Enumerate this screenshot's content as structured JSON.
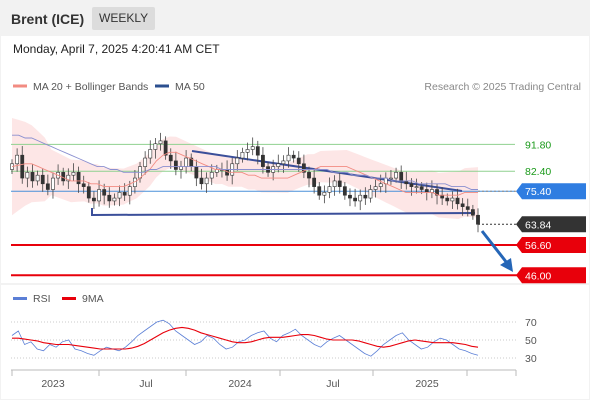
{
  "header": {
    "title": "Brent (ICE)",
    "timeframe": "WEEKLY"
  },
  "timestamp": "Monday, April 7, 2025 4:20:41 AM CET",
  "legend": {
    "bollinger": {
      "label": "MA 20 + Bollinger Bands",
      "color": "#f28b82"
    },
    "ma50": {
      "label": "MA 50",
      "color": "#2b4f8f"
    },
    "credit": "Research © 2025 Trading Central"
  },
  "levels": [
    {
      "value": 91.8,
      "label": "91.80",
      "kind": "resistance",
      "color": "#8fd18f"
    },
    {
      "value": 82.4,
      "label": "82.40",
      "kind": "resistance",
      "color": "#8fd18f"
    },
    {
      "value": 75.4,
      "label": "75.40",
      "kind": "pivot",
      "color": "#4a90d9"
    },
    {
      "value": 63.84,
      "label": "63.84",
      "kind": "last",
      "color": "#333333"
    },
    {
      "value": 56.6,
      "label": "56.60",
      "kind": "support",
      "color": "#e8000b"
    },
    {
      "value": 46.0,
      "label": "46.00",
      "kind": "support",
      "color": "#e8000b"
    }
  ],
  "chart_data": [
    {
      "type": "candlestick",
      "x_ticks": [
        "2023",
        "Jul",
        "2024",
        "Jul",
        "2025"
      ],
      "ylim": [
        44,
        108
      ],
      "series": [
        {
          "name": "MA 20 + Bollinger Bands",
          "values": [
            84,
            84.5,
            85,
            85,
            84,
            83,
            82,
            81,
            80,
            79,
            79,
            79,
            78,
            78,
            77,
            77,
            77,
            77,
            78,
            79,
            81,
            83,
            86,
            88,
            89,
            89,
            88,
            87,
            86,
            85,
            84,
            83,
            83,
            82,
            82,
            82,
            81,
            81,
            80,
            80,
            80,
            80,
            80,
            81,
            82,
            83,
            83,
            84,
            84,
            84,
            84,
            84,
            83,
            82,
            81,
            80,
            79,
            78,
            77,
            76,
            75,
            75,
            75,
            75,
            75,
            74,
            74,
            74,
            74,
            75,
            75,
            75
          ]
        },
        {
          "name": "MA 50",
          "values": [
            95,
            95,
            94,
            94,
            93,
            92,
            91,
            90,
            89,
            88,
            87,
            86,
            85,
            84,
            84,
            83,
            83,
            82,
            82,
            82,
            82,
            83,
            83,
            84,
            84,
            84,
            84,
            84,
            84,
            84,
            84,
            84,
            83,
            83,
            83,
            83,
            83,
            83,
            83,
            83,
            83,
            83,
            83,
            83,
            83,
            83,
            83,
            83,
            83,
            82,
            82,
            82,
            81,
            81,
            81,
            80,
            80,
            80,
            79,
            79,
            79,
            79,
            78,
            78,
            78,
            78,
            78,
            77,
            77,
            77,
            76,
            76
          ]
        }
      ],
      "candles": [
        85,
        88,
        80,
        82,
        79,
        81,
        78,
        76,
        80,
        82,
        79,
        81,
        82,
        78,
        77,
        73,
        72,
        76,
        74,
        72,
        73,
        75,
        74,
        77,
        80,
        84,
        87,
        90,
        92,
        93,
        88,
        86,
        83,
        84,
        87,
        84,
        80,
        78,
        80,
        82,
        83,
        83,
        81,
        85,
        87,
        89,
        90,
        91,
        88,
        84,
        82,
        84,
        85,
        86,
        88,
        87,
        85,
        82,
        80,
        77,
        74,
        75,
        77,
        79,
        77,
        74,
        73,
        72,
        74,
        73,
        76,
        77,
        78,
        80,
        80,
        82,
        79,
        78,
        77,
        77,
        76,
        75,
        76,
        74,
        73,
        72,
        73,
        71,
        70,
        69,
        67,
        63.84
      ]
    },
    {
      "type": "line",
      "title": "",
      "ylim": [
        20,
        80
      ],
      "y_ticks": [
        30,
        50,
        70
      ],
      "series": [
        {
          "name": "RSI",
          "color": "#5b7fd6",
          "values": [
            55,
            60,
            45,
            48,
            40,
            38,
            45,
            42,
            48,
            50,
            40,
            38,
            35,
            33,
            38,
            42,
            40,
            38,
            42,
            48,
            55,
            60,
            65,
            70,
            72,
            68,
            60,
            55,
            50,
            45,
            48,
            55,
            52,
            45,
            40,
            42,
            48,
            50,
            55,
            58,
            60,
            52,
            48,
            55,
            58,
            62,
            55,
            50,
            45,
            42,
            48,
            52,
            55,
            50,
            45,
            40,
            35,
            32,
            38,
            45,
            50,
            55,
            58,
            50,
            45,
            40,
            42,
            48,
            52,
            50,
            45,
            40,
            38,
            35,
            33
          ]
        },
        {
          "name": "9MA",
          "color": "#e8000b",
          "values": [
            52,
            52,
            51,
            50,
            49,
            47,
            46,
            45,
            45,
            45,
            44,
            43,
            42,
            41,
            40,
            40,
            40,
            40,
            40,
            41,
            43,
            46,
            50,
            54,
            58,
            61,
            63,
            64,
            63,
            61,
            58,
            56,
            54,
            52,
            50,
            48,
            47,
            47,
            48,
            50,
            52,
            53,
            53,
            53,
            54,
            55,
            56,
            56,
            55,
            53,
            51,
            50,
            50,
            50,
            50,
            49,
            47,
            45,
            43,
            42,
            43,
            45,
            47,
            49,
            50,
            49,
            48,
            47,
            47,
            47,
            47,
            46,
            45,
            43,
            42
          ]
        }
      ]
    }
  ]
}
